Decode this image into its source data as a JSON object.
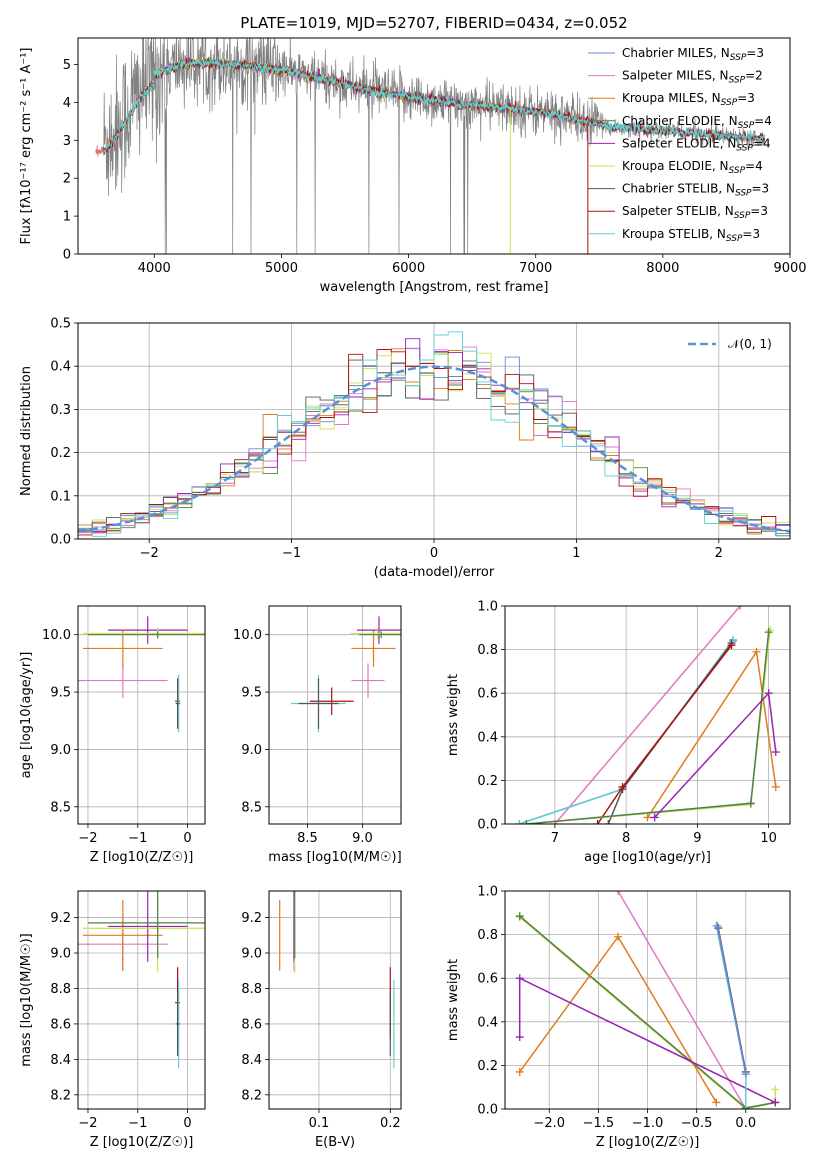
{
  "figure_title": "PLATE=1019, MJD=52707, FIBERID=0434, z=0.052",
  "colors": {
    "Chabrier MILES": "#6688dd",
    "Salpeter MILES": "#e377c2",
    "Kroupa MILES": "#e07b20",
    "Chabrier ELODIE": "#4f7f4f",
    "Salpeter ELODIE": "#9a22b5",
    "Kroupa ELODIE": "#c8e34a",
    "Chabrier STELIB": "#555555",
    "Salpeter STELIB": "#b01010",
    "Kroupa STELIB": "#5ecfd2",
    "data": "#808080",
    "normal": "#5b8fd6"
  },
  "chart_data": [
    {
      "id": "spectrum",
      "type": "line",
      "title": "PLATE=1019, MJD=52707, FIBERID=0434, z=0.052",
      "xlabel": "wavelength [Angstrom, rest frame]",
      "ylabel": "Flux [fλ10⁻¹⁷ erg cm⁻² s⁻¹ A⁻¹]",
      "xlim": [
        3400,
        9000
      ],
      "ylim": [
        0,
        5.7
      ],
      "xticks": [
        "4000",
        "5000",
        "6000",
        "7000",
        "8000",
        "9000"
      ],
      "yticks": [
        "0",
        "1",
        "2",
        "3",
        "4",
        "5"
      ],
      "grid": false,
      "legend_position": "upper-right",
      "legend": [
        {
          "name": "Chabrier MILES",
          "sub": "SSP",
          "eq": "=3"
        },
        {
          "name": "Salpeter MILES",
          "sub": "SSP",
          "eq": "=2"
        },
        {
          "name": "Kroupa MILES",
          "sub": "SSP",
          "eq": "=3"
        },
        {
          "name": "Chabrier ELODIE",
          "sub": "SSP",
          "eq": "=4"
        },
        {
          "name": "Salpeter ELODIE",
          "sub": "SSP",
          "eq": "=4"
        },
        {
          "name": "Kroupa ELODIE",
          "sub": "SSP",
          "eq": "=4"
        },
        {
          "name": "Chabrier STELIB",
          "sub": "SSP",
          "eq": "=3"
        },
        {
          "name": "Salpeter STELIB",
          "sub": "SSP",
          "eq": "=3"
        },
        {
          "name": "Kroupa STELIB",
          "sub": "SSP",
          "eq": "=3"
        }
      ],
      "data_continuum": {
        "x": [
          3600,
          3700,
          3800,
          3900,
          4000,
          4100,
          4200,
          4400,
          4600,
          4800,
          5000,
          5200,
          5400,
          5600,
          5800,
          6000,
          6200,
          6400,
          6600,
          6800,
          7000,
          7200,
          7400,
          7600,
          7800,
          8000,
          8200,
          8400,
          8600,
          8800
        ],
        "y": [
          2.9,
          3.3,
          3.8,
          4.4,
          4.7,
          4.85,
          5.0,
          5.05,
          5.0,
          4.95,
          4.85,
          4.7,
          4.55,
          4.4,
          4.25,
          4.15,
          4.05,
          3.95,
          3.9,
          3.85,
          3.75,
          3.65,
          3.5,
          3.35,
          3.3,
          3.25,
          3.2,
          3.15,
          3.1,
          3.05
        ]
      },
      "model_ranges": {
        "MILES": [
          3540,
          7410
        ],
        "ELODIE": [
          3900,
          6800
        ],
        "STELIB": [
          3600,
          8800
        ]
      }
    },
    {
      "id": "residuals",
      "type": "line",
      "xlabel": "(data-model)/error",
      "ylabel": "Normed distribution",
      "xlim": [
        -2.5,
        2.5
      ],
      "ylim": [
        0,
        0.5
      ],
      "xticks": [
        "−2",
        "−1",
        "0",
        "1",
        "2"
      ],
      "yticks": [
        "0.0",
        "0.1",
        "0.2",
        "0.3",
        "0.4",
        "0.5"
      ],
      "grid": true,
      "legend_position": "upper-right",
      "normal_label": "𝒩(0, 1)",
      "bin_width": 0.1
    },
    {
      "id": "age_vs_Z",
      "type": "scatter",
      "xlabel": "Z [log10(Z/Z☉)]",
      "ylabel": "age  [log10(age/yr)]",
      "xlim": [
        -2.2,
        0.35
      ],
      "ylim": [
        8.35,
        10.25
      ],
      "xticks": [
        "−2",
        "−1",
        "0"
      ],
      "yticks": [
        "8.5",
        "9.0",
        "9.5",
        "10.0"
      ],
      "grid": true
    },
    {
      "id": "age_vs_mass",
      "type": "scatter",
      "xlabel": "mass [log10(M/M☉)]",
      "ylim": [
        8.35,
        10.25
      ],
      "xlim": [
        8.15,
        9.35
      ],
      "xticks": [
        "8.5",
        "9.0"
      ],
      "yticks": [
        "8.5",
        "9.0",
        "9.5",
        "10.0"
      ],
      "grid": true
    },
    {
      "id": "weight_vs_age",
      "type": "line",
      "xlabel": "age  [log10(age/yr)]",
      "ylabel": "mass weight",
      "xlim": [
        6.3,
        10.3
      ],
      "ylim": [
        0,
        1.0
      ],
      "xticks": [
        "7",
        "8",
        "9",
        "10"
      ],
      "yticks": [
        "0.0",
        "0.2",
        "0.4",
        "0.6",
        "0.8",
        "1.0"
      ],
      "grid": true,
      "series": [
        {
          "key": "Salpeter MILES",
          "x": [
            7.0,
            9.6
          ],
          "y": [
            0.0,
            1.0
          ]
        },
        {
          "key": "Chabrier MILES",
          "x": [
            6.5,
            7.95,
            9.5
          ],
          "y": [
            0.0,
            0.16,
            0.84
          ]
        },
        {
          "key": "Kroupa STELIB",
          "x": [
            6.5,
            7.95,
            9.5
          ],
          "y": [
            0.0,
            0.16,
            0.845
          ]
        },
        {
          "key": "Chabrier STELIB",
          "x": [
            7.75,
            7.95,
            9.48
          ],
          "y": [
            0.0,
            0.16,
            0.83
          ]
        },
        {
          "key": "Salpeter STELIB",
          "x": [
            7.6,
            7.95,
            9.48
          ],
          "y": [
            0.0,
            0.17,
            0.82
          ]
        },
        {
          "key": "Kroupa MILES",
          "x": [
            8.3,
            9.83,
            10.1
          ],
          "y": [
            0.03,
            0.79,
            0.17
          ]
        },
        {
          "key": "Kroupa ELODIE",
          "x": [
            6.6,
            9.75,
            10.02
          ],
          "y": [
            0.0,
            0.09,
            0.89
          ]
        },
        {
          "key": "Chabrier ELODIE",
          "x": [
            6.6,
            9.75,
            10.0
          ],
          "y": [
            0.0,
            0.095,
            0.88
          ]
        },
        {
          "key": "Salpeter ELODIE",
          "x": [
            8.4,
            10.0,
            10.1
          ],
          "y": [
            0.03,
            0.6,
            0.33
          ]
        }
      ]
    },
    {
      "id": "mass_vs_Z",
      "type": "scatter",
      "xlabel": "Z [log10(Z/Z☉)]",
      "ylabel": "mass [log10(M/M☉)]",
      "xlim": [
        -2.2,
        0.35
      ],
      "ylim": [
        8.12,
        9.35
      ],
      "xticks": [
        "−2",
        "−1",
        "0"
      ],
      "yticks": [
        "8.2",
        "8.4",
        "8.6",
        "8.8",
        "9.0",
        "9.2"
      ],
      "grid": true
    },
    {
      "id": "mass_vs_ebv",
      "type": "scatter",
      "xlabel": "E(B-V)",
      "xlim": [
        0.03,
        0.215
      ],
      "ylim": [
        8.12,
        9.35
      ],
      "xticks": [
        "0.1",
        "0.2"
      ],
      "yticks": [
        "8.2",
        "8.4",
        "8.6",
        "8.8",
        "9.0",
        "9.2"
      ],
      "grid": true
    },
    {
      "id": "weight_vs_Z",
      "type": "line",
      "xlabel": "Z [log10(Z/Z☉)]",
      "ylabel": "mass weight",
      "xlim": [
        -2.45,
        0.45
      ],
      "ylim": [
        0,
        1.0
      ],
      "xticks": [
        "−2.0",
        "−1.5",
        "−1.0",
        "−0.5",
        "0.0"
      ],
      "yticks": [
        "0.0",
        "0.2",
        "0.4",
        "0.6",
        "0.8",
        "1.0"
      ],
      "grid": true,
      "series": [
        {
          "key": "Salpeter MILES",
          "x": [
            -1.3,
            0.0
          ],
          "y": [
            1.0,
            0.0
          ]
        },
        {
          "key": "Kroupa ELODIE",
          "x": [
            -2.3,
            0.0,
            0.3,
            0.3
          ],
          "y": [
            0.88,
            0.0,
            0.03,
            0.09
          ]
        },
        {
          "key": "Chabrier ELODIE",
          "x": [
            -2.3,
            0.0,
            0.3
          ],
          "y": [
            0.885,
            0.005,
            0.03
          ]
        },
        {
          "key": "Kroupa MILES",
          "x": [
            -2.3,
            -1.3,
            -0.3
          ],
          "y": [
            0.17,
            0.79,
            0.03
          ]
        },
        {
          "key": "Salpeter ELODIE",
          "x": [
            -2.3,
            -2.3,
            0.3
          ],
          "y": [
            0.33,
            0.6,
            0.03
          ]
        },
        {
          "key": "Kroupa STELIB",
          "x": [
            -0.3,
            0.0,
            0.0
          ],
          "y": [
            0.84,
            0.16,
            0.0
          ]
        },
        {
          "key": "Chabrier STELIB",
          "x": [
            -0.28,
            0.0
          ],
          "y": [
            0.83,
            0.17
          ]
        },
        {
          "key": "Chabrier MILES",
          "x": [
            -0.29,
            0.0
          ],
          "y": [
            0.84,
            0.16
          ]
        }
      ]
    }
  ],
  "points": [
    {
      "key": "Salpeter MILES",
      "Z": -1.3,
      "Zerr": 0.9,
      "age": 9.6,
      "ageerr": 0.15,
      "mass": 9.05,
      "masserr": 0.15,
      "ebv": 0.065,
      "ebverr": 0.0
    },
    {
      "key": "Kroupa MILES",
      "Z": -1.3,
      "Zerr": 0.8,
      "age": 9.88,
      "ageerr": 0.16,
      "mass": 9.1,
      "masserr": 0.2,
      "ebv": 0.045,
      "ebverr": 0.0
    },
    {
      "key": "Salpeter ELODIE",
      "Z": -0.8,
      "Zerr": 0.8,
      "age": 10.04,
      "ageerr": 0.12,
      "mass": 9.15,
      "masserr": 0.2,
      "ebv": 0.065,
      "ebverr": 0.0
    },
    {
      "key": "Kroupa ELODIE",
      "Z": -0.6,
      "Zerr": 1.5,
      "age": 10.01,
      "ageerr": 0.05,
      "mass": 9.14,
      "masserr": 0.25,
      "ebv": 0.066,
      "ebverr": 0.0
    },
    {
      "key": "Chabrier ELODIE",
      "Z": -0.6,
      "Zerr": 1.4,
      "age": 10.0,
      "ageerr": 0.03,
      "mass": 9.17,
      "masserr": 0.2,
      "ebv": 0.066,
      "ebverr": 0.0
    },
    {
      "key": "Salpeter STELIB",
      "Z": -0.2,
      "Zerr": 0.05,
      "age": 9.42,
      "ageerr": 0.12,
      "mass": 8.72,
      "masserr": 0.2,
      "ebv": 0.2,
      "ebverr": 0.0
    },
    {
      "key": "Kroupa STELIB",
      "Z": -0.18,
      "Zerr": 0.04,
      "age": 9.4,
      "ageerr": 0.25,
      "mass": 8.6,
      "masserr": 0.25,
      "ebv": 0.205,
      "ebverr": 0.0
    },
    {
      "key": "Chabrier STELIB",
      "Z": -0.2,
      "Zerr": 0.04,
      "age": 9.4,
      "ageerr": 0.22,
      "mass": 8.6,
      "masserr": 0.18,
      "ebv": 0.2,
      "ebverr": 0.0
    }
  ]
}
